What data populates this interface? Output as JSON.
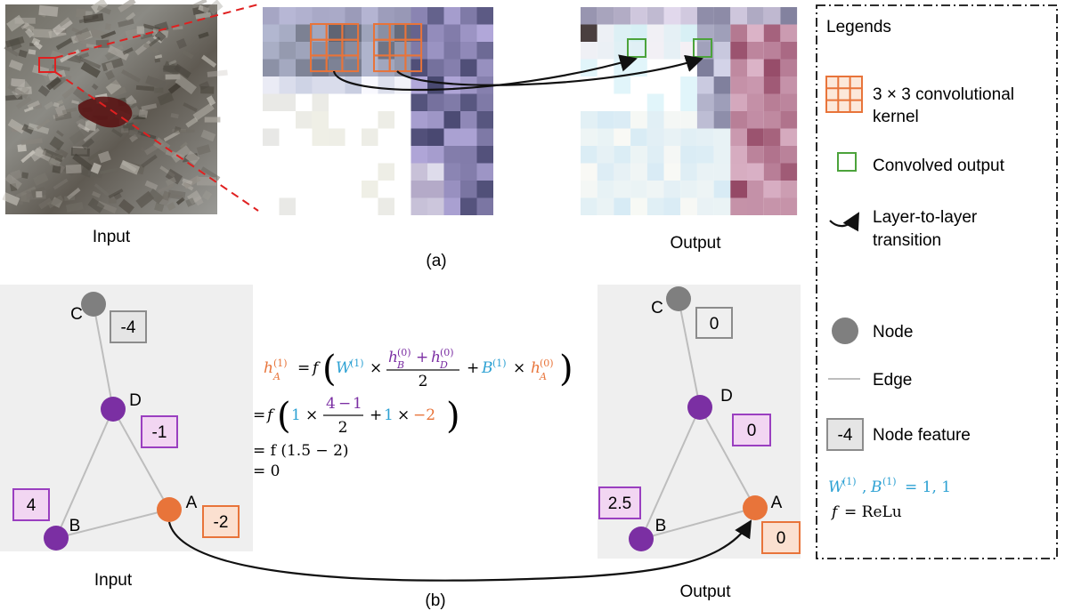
{
  "panel_a": {
    "caption": "(a)",
    "input_label": "Input",
    "output_label": "Output"
  },
  "panel_b": {
    "caption": "(b)",
    "input_label": "Input",
    "output_label": "Output",
    "input_graph": {
      "nodes": [
        {
          "id": "C",
          "feature": "-4"
        },
        {
          "id": "D",
          "feature": "-1"
        },
        {
          "id": "B",
          "feature": "4"
        },
        {
          "id": "A",
          "feature": "-2"
        }
      ]
    },
    "output_graph": {
      "nodes": [
        {
          "id": "C",
          "feature": "0"
        },
        {
          "id": "D",
          "feature": "0"
        },
        {
          "id": "B",
          "feature": "2.5"
        },
        {
          "id": "A",
          "feature": "0"
        }
      ]
    },
    "equation": {
      "f": "f",
      "eq": "=",
      "times": "×",
      "plus": "+",
      "minus": "−",
      "lhs_h": "h",
      "lhs_sub": "A",
      "sup1": "(1)",
      "sup0": "(0)",
      "W": "W",
      "B": "B",
      "hB_sub": "B",
      "hD_sub": "D",
      "hA_sub": "A",
      "two": "2",
      "one_w": "1",
      "one_b": "1",
      "four": "4",
      "one_d": "1",
      "neg_two": "−2",
      "line3": "= f (1.5 − 2)",
      "line4": "= 0"
    }
  },
  "legend": {
    "title": "Legends",
    "kernel_line1": "3 × 3 convolutional",
    "kernel_line2": "kernel",
    "convolved": "Convolved output",
    "transition_line1": "Layer-to-layer",
    "transition_line2": "transition",
    "node": "Node",
    "edge": "Edge",
    "feature_value": "-4",
    "feature": "Node feature",
    "params": "W(1), B(1) = 1, 1",
    "params_W": "W",
    "params_B": "B",
    "params_sup": "(1)",
    "params_rest": "= 1, 1",
    "func_f": "f",
    "func_rest": "= ReLu"
  },
  "colors": {
    "orange": "#E8743A",
    "purple": "#7B2FA3",
    "green": "#4CA33B",
    "blue": "#2DA1D3",
    "gray_node": "#7F7F7F",
    "panel_bg": "#EFEFEF",
    "red_dash": "#E02020"
  }
}
